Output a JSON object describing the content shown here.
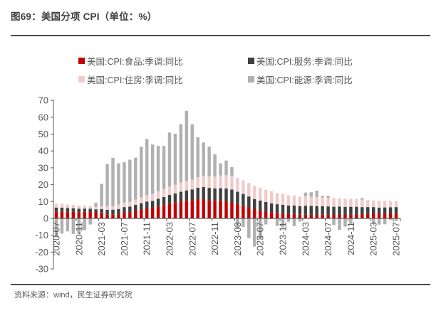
{
  "page": {
    "title": "图69：美国分项 CPI（单位：%）",
    "source": "资料来源：wind，民生证券研究院"
  },
  "colors": {
    "food": "#C00000",
    "services": "#404040",
    "housing": "#F0CBCB",
    "energy": "#B0B0B0",
    "axis": "#595959",
    "text": "#595959",
    "rule": "#4a4a4a"
  },
  "chart_data": {
    "type": "bar",
    "stacked": true,
    "title": "图69：美国分项 CPI（单位：%）",
    "xlabel": "",
    "ylabel": "",
    "ylim": [
      -30,
      70
    ],
    "y_ticks": [
      70,
      60,
      50,
      40,
      30,
      20,
      10,
      0,
      -10,
      -20,
      -30
    ],
    "grid": false,
    "legend_position": "top",
    "x_label_every": 4,
    "x": [
      "2020-07",
      "2020-08",
      "2020-09",
      "2020-10",
      "2020-11",
      "2020-12",
      "2021-01",
      "2021-02",
      "2021-03",
      "2021-04",
      "2021-05",
      "2021-06",
      "2021-07",
      "2021-08",
      "2021-09",
      "2021-10",
      "2021-11",
      "2021-12",
      "2022-01",
      "2022-02",
      "2022-03",
      "2022-04",
      "2022-05",
      "2022-06",
      "2022-07",
      "2022-08",
      "2022-09",
      "2022-10",
      "2022-11",
      "2022-12",
      "2023-01",
      "2023-02",
      "2023-03",
      "2023-04",
      "2023-05",
      "2023-06",
      "2023-07",
      "2023-08",
      "2023-09",
      "2023-10",
      "2023-11",
      "2023-12",
      "2024-01",
      "2024-02",
      "2024-03",
      "2024-04",
      "2024-05",
      "2024-06",
      "2024-07",
      "2024-08",
      "2024-09",
      "2024-10",
      "2024-11",
      "2024-12",
      "2025-01",
      "2025-02",
      "2025-03",
      "2025-04",
      "2025-05",
      "2025-06",
      "2025-07"
    ],
    "series": [
      {
        "name": "美国:CPI:食品:季调:同比",
        "color": "#C00000",
        "values": [
          4.1,
          4.1,
          3.9,
          3.9,
          3.7,
          3.9,
          3.8,
          3.6,
          3.5,
          2.4,
          2.2,
          2.4,
          3.4,
          3.7,
          4.6,
          5.3,
          6.1,
          6.3,
          7.0,
          7.9,
          8.8,
          9.4,
          10.1,
          10.4,
          10.9,
          11.4,
          11.2,
          10.9,
          10.6,
          10.4,
          10.1,
          9.5,
          8.5,
          7.7,
          6.7,
          5.7,
          4.9,
          4.3,
          3.7,
          3.3,
          2.9,
          2.7,
          2.6,
          2.2,
          2.2,
          2.2,
          2.1,
          2.2,
          2.2,
          2.1,
          2.3,
          2.1,
          2.4,
          2.5,
          2.5,
          2.6,
          3.0,
          2.8,
          2.9,
          3.0,
          2.9
        ]
      },
      {
        "name": "美国:CPI:服务:季调:同比",
        "color": "#404040",
        "values": [
          2.3,
          2.3,
          2.2,
          2.1,
          2.0,
          1.9,
          1.9,
          1.8,
          2.1,
          2.7,
          3.0,
          3.2,
          3.3,
          3.3,
          3.4,
          3.7,
          3.9,
          4.1,
          4.6,
          4.8,
          5.1,
          5.4,
          5.7,
          6.2,
          6.3,
          6.8,
          7.4,
          7.2,
          7.2,
          7.5,
          7.6,
          7.6,
          7.3,
          6.8,
          6.3,
          5.7,
          5.7,
          5.4,
          5.2,
          5.1,
          5.2,
          4.9,
          5.0,
          5.0,
          5.3,
          5.2,
          5.2,
          5.0,
          4.9,
          4.8,
          4.7,
          4.7,
          4.5,
          4.4,
          4.2,
          4.1,
          3.7,
          3.6,
          3.6,
          3.6,
          3.8
        ]
      },
      {
        "name": "美国:CPI:住房:季调:同比",
        "color": "#F0CBCB",
        "values": [
          2.3,
          2.3,
          2.1,
          2.0,
          1.9,
          1.8,
          1.6,
          1.5,
          1.7,
          2.1,
          2.2,
          2.6,
          2.8,
          2.8,
          3.2,
          3.5,
          3.8,
          4.1,
          4.4,
          4.7,
          5.0,
          5.1,
          5.5,
          5.6,
          5.7,
          6.2,
          6.6,
          6.9,
          7.1,
          7.5,
          7.9,
          8.1,
          8.2,
          8.1,
          8.0,
          7.8,
          7.7,
          7.3,
          7.2,
          6.7,
          6.5,
          6.2,
          6.0,
          5.7,
          5.7,
          5.5,
          5.4,
          5.2,
          5.1,
          5.2,
          4.9,
          4.9,
          4.7,
          4.6,
          4.4,
          4.2,
          4.0,
          4.0,
          3.9,
          3.8,
          3.7
        ]
      },
      {
        "name": "美国:CPI:能源:季调:同比",
        "color": "#B0B0B0",
        "values": [
          -11.2,
          -9.0,
          -7.7,
          -9.2,
          -9.4,
          -7.0,
          -3.6,
          2.4,
          13.2,
          25.1,
          28.5,
          24.5,
          23.8,
          25.0,
          24.8,
          30.0,
          33.3,
          29.3,
          27.0,
          25.6,
          32.0,
          30.3,
          34.6,
          41.6,
          32.9,
          23.8,
          19.8,
          17.6,
          13.1,
          7.3,
          8.7,
          5.2,
          -6.4,
          -5.1,
          -11.7,
          -16.7,
          -12.5,
          -3.6,
          -0.5,
          -4.5,
          -5.4,
          -2.0,
          -4.6,
          -1.9,
          2.1,
          2.6,
          3.7,
          1.0,
          1.1,
          -4.0,
          -6.8,
          -4.9,
          -3.2,
          -0.5,
          1.0,
          -0.2,
          -3.3,
          -3.7,
          -3.5,
          -0.8,
          -1.6
        ]
      }
    ]
  }
}
